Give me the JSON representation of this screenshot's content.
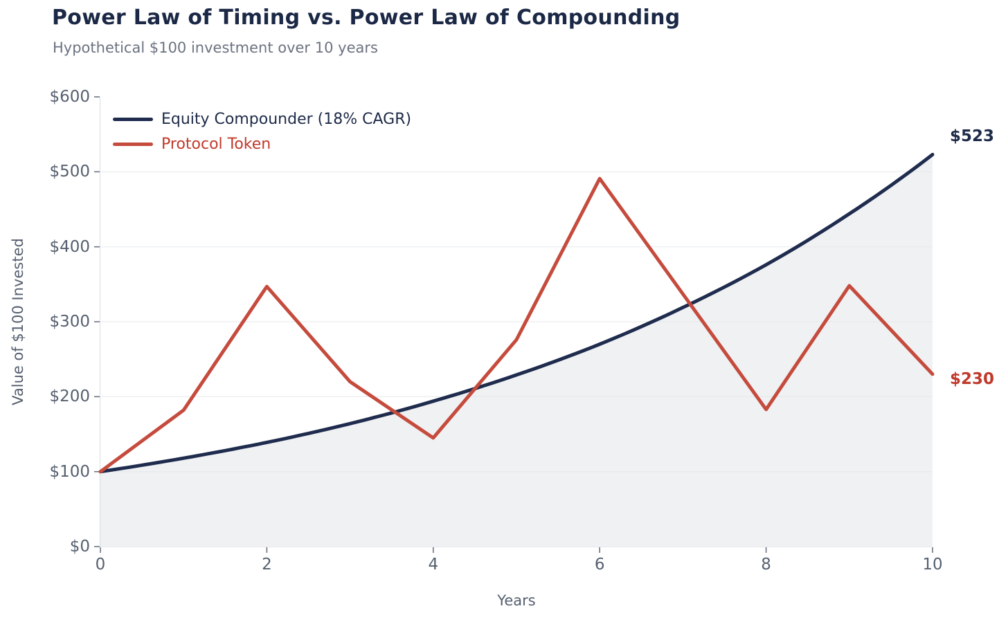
{
  "header": {
    "title": "Power Law of Timing vs. Power Law of Compounding",
    "subtitle": "Hypothetical $100 investment over 10 years"
  },
  "legend": [
    {
      "label": "Equity Compounder (18% CAGR)",
      "series": "equity"
    },
    {
      "label": "Protocol Token",
      "series": "token"
    }
  ],
  "axes": {
    "x_label": "Years",
    "y_label": "Value of $100 Invested"
  },
  "annotations": {
    "equity_end": "$523",
    "token_end": "$230"
  },
  "colors": {
    "title": "#1c2946",
    "subtitle": "#6b7280",
    "axis_text": "#566070",
    "tick_mark": "#6a7380",
    "equity_line": "#1f2c4e",
    "equity_text": "#1d2a48",
    "token_line": "#c54b3d",
    "token_text": "#c0392b",
    "area_fill": "#eff1f3",
    "grid": "#e5e8eb",
    "spine": "#d8dce1"
  },
  "chart_data": {
    "type": "line",
    "title": "Power Law of Timing vs. Power Law of Compounding",
    "subtitle": "Hypothetical $100 investment over 10 years",
    "xlabel": "Years",
    "ylabel": "Value of $100 Invested",
    "x": [
      0,
      1,
      2,
      3,
      4,
      5,
      6,
      7,
      8,
      9,
      10
    ],
    "series": [
      {
        "name": "Equity Compounder (18% CAGR)",
        "values": [
          100,
          118,
          139,
          164,
          194,
          229,
          270,
          319,
          376,
          444,
          523
        ],
        "interpolation": "exponential",
        "area_fill": true,
        "end_label": "$523"
      },
      {
        "name": "Protocol Token",
        "values": [
          100,
          182,
          347,
          220,
          145,
          276,
          491,
          337,
          183,
          348,
          230
        ],
        "interpolation": "linear",
        "area_fill": false,
        "end_label": "$230"
      }
    ],
    "xlim": [
      0,
      10
    ],
    "ylim": [
      0,
      600
    ],
    "x_tick_values": [
      0,
      2,
      4,
      6,
      8,
      10
    ],
    "x_tick_labels": [
      "0",
      "2",
      "4",
      "6",
      "8",
      "10"
    ],
    "y_tick_values": [
      0,
      100,
      200,
      300,
      400,
      500,
      600
    ],
    "y_tick_labels": [
      "$0",
      "$100",
      "$200",
      "$300",
      "$400",
      "$500",
      "$600"
    ],
    "grid_values": [
      100,
      200,
      300,
      400,
      500
    ],
    "grid": "horizontal",
    "legend_position": "upper left"
  }
}
